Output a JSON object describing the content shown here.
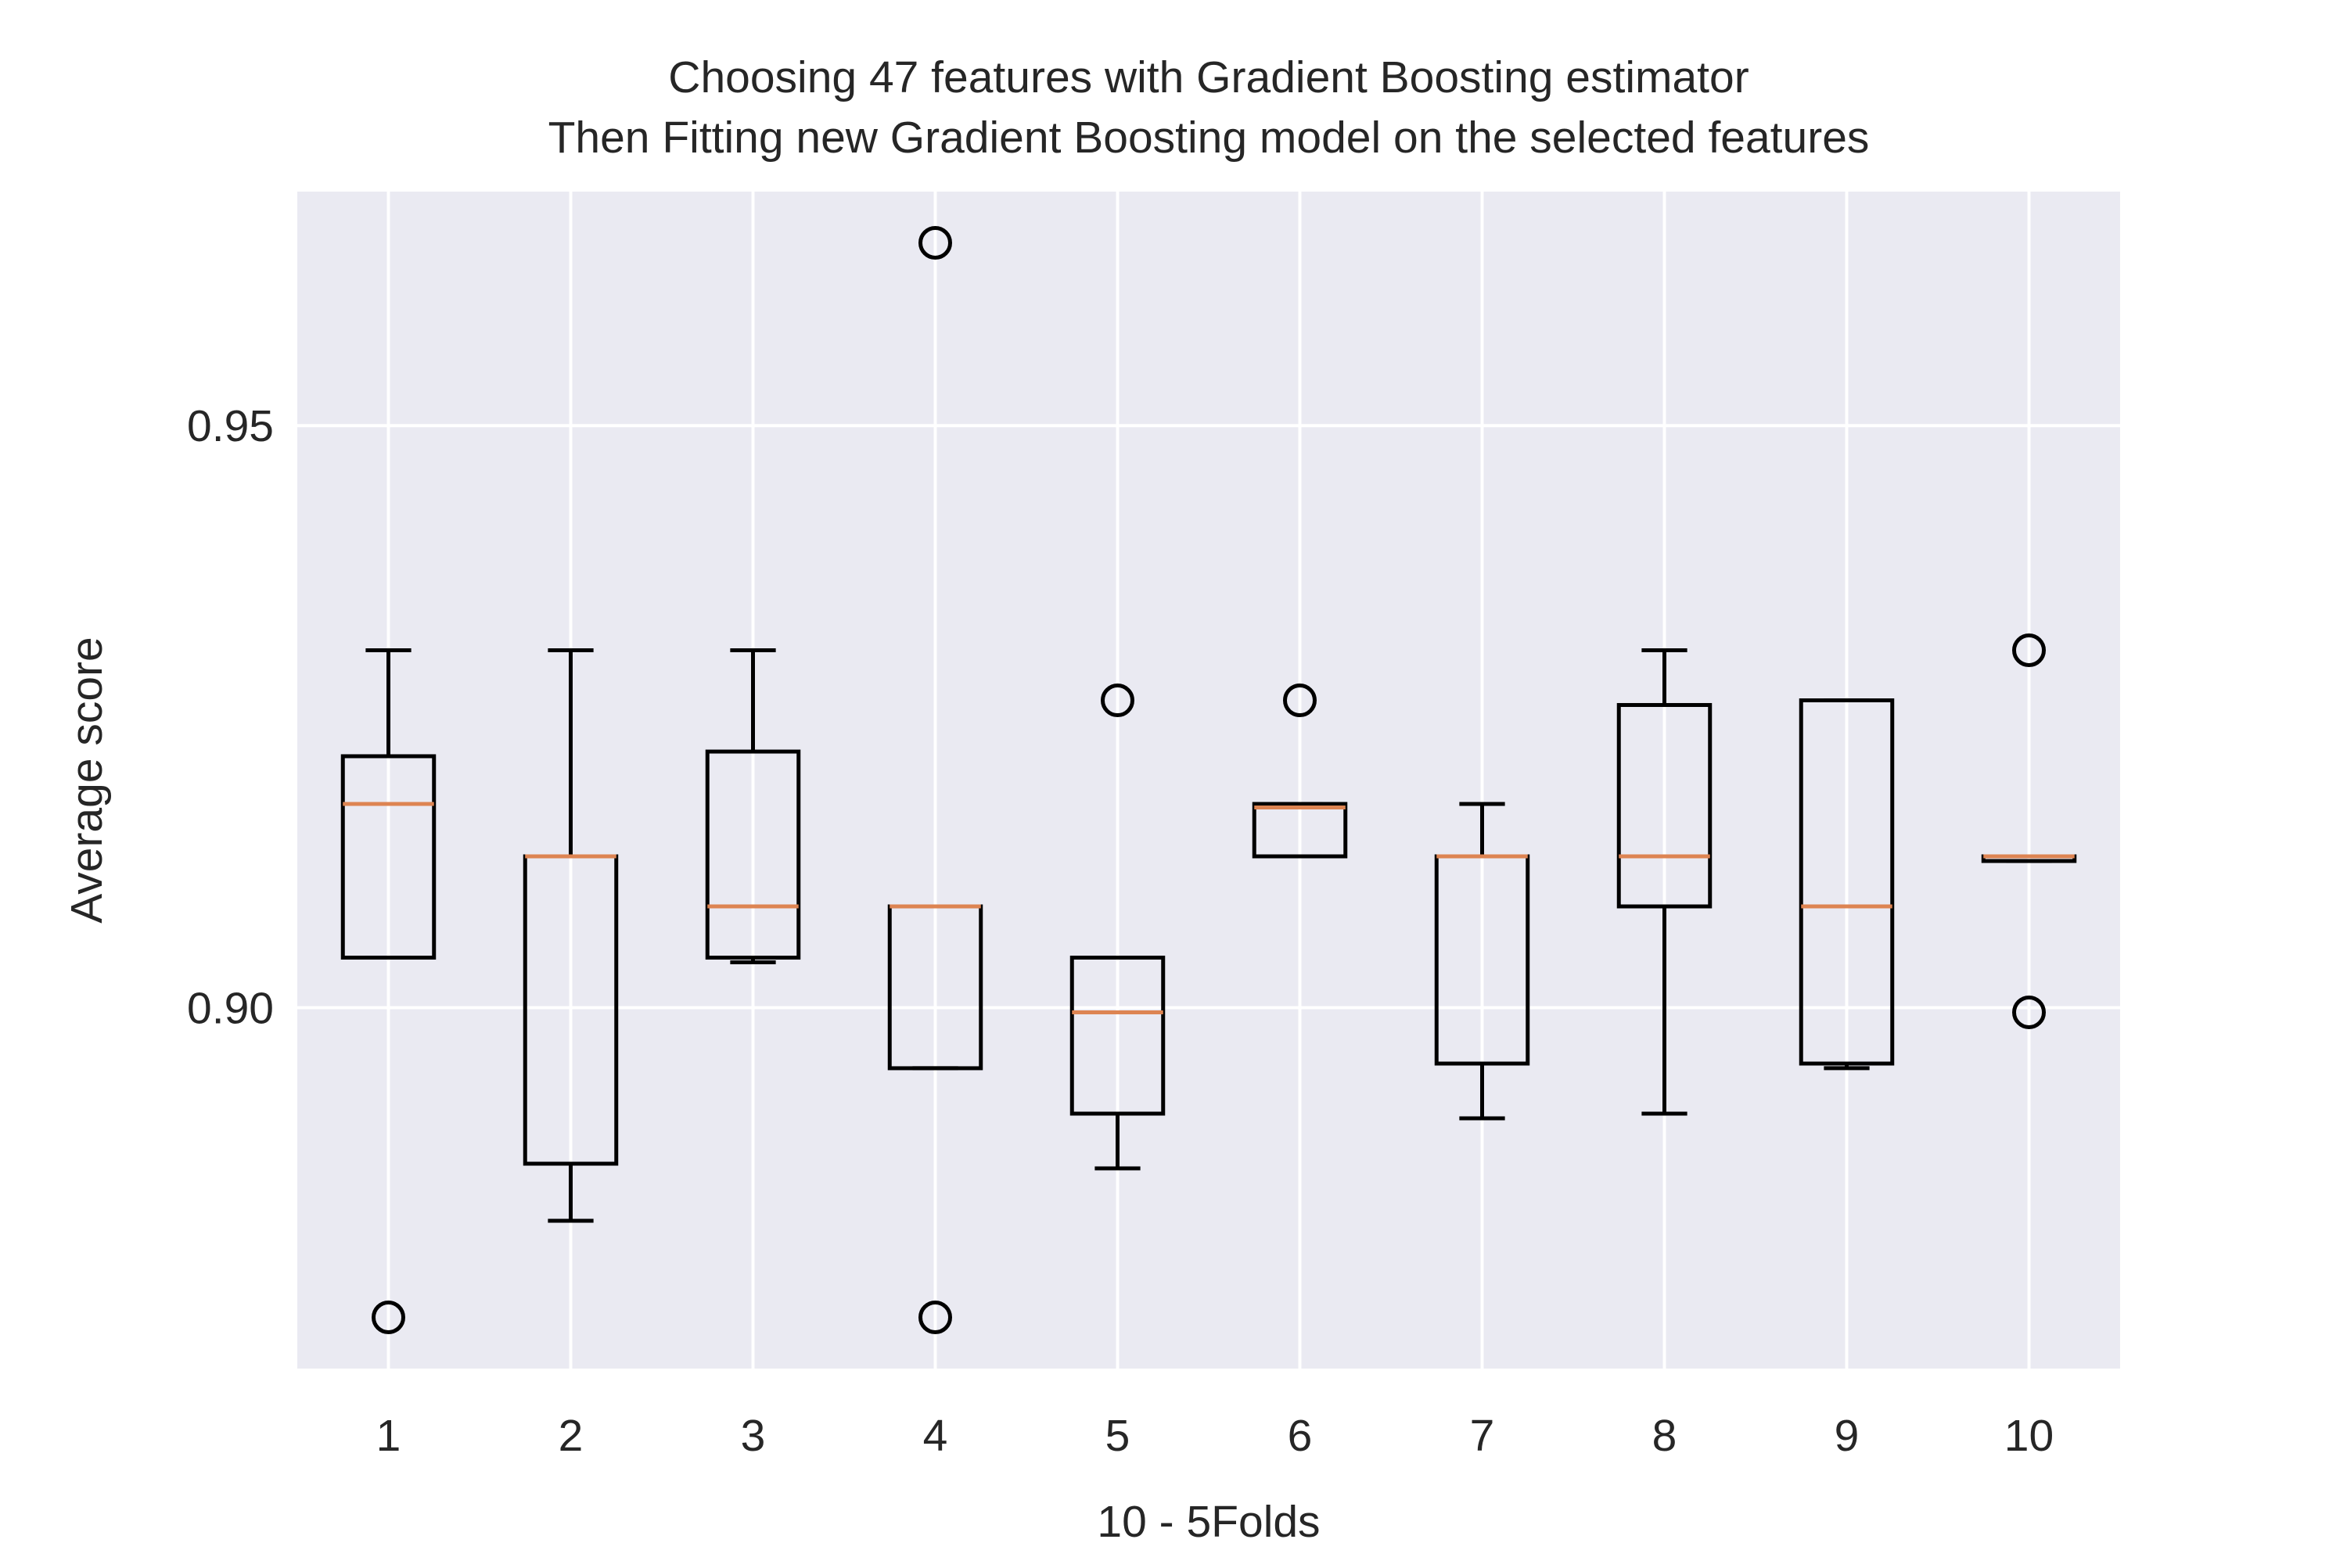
{
  "chart_data": {
    "type": "box",
    "title": "Choosing 47 features with Gradient Boosting estimator\nThen Fitting new Gradient Boosting model on the selected features",
    "title_lines": [
      "Choosing 47 features with Gradient Boosting estimator",
      "Then Fitting new Gradient Boosting model on the selected features"
    ],
    "xlabel": "10 - 5Folds",
    "ylabel": "Average score",
    "ylim": [
      0.869,
      0.9701
    ],
    "yticks": [
      0.9,
      0.95
    ],
    "ytick_labels": [
      "0.90",
      "0.95"
    ],
    "categories": [
      "1",
      "2",
      "3",
      "4",
      "5",
      "6",
      "7",
      "8",
      "9",
      "10"
    ],
    "boxes": [
      {
        "label": "1",
        "whislo": 0.9043,
        "q1": 0.9043,
        "med": 0.9175,
        "q3": 0.9216,
        "whishi": 0.9307,
        "fliers": [
          0.8734
        ]
      },
      {
        "label": "2",
        "whislo": 0.8817,
        "q1": 0.8866,
        "med": 0.913,
        "q3": 0.913,
        "whishi": 0.9307,
        "fliers": []
      },
      {
        "label": "3",
        "whislo": 0.9039,
        "q1": 0.9043,
        "med": 0.9087,
        "q3": 0.922,
        "whishi": 0.9307,
        "fliers": []
      },
      {
        "label": "4",
        "whislo": 0.8948,
        "q1": 0.8948,
        "med": 0.9087,
        "q3": 0.9087,
        "whishi": 0.9087,
        "fliers": [
          0.9657,
          0.8734
        ]
      },
      {
        "label": "5",
        "whislo": 0.8862,
        "q1": 0.8909,
        "med": 0.8996,
        "q3": 0.9043,
        "whishi": 0.9043,
        "fliers": [
          0.9264
        ]
      },
      {
        "label": "6",
        "whislo": 0.913,
        "q1": 0.913,
        "med": 0.9172,
        "q3": 0.9175,
        "whishi": 0.9175,
        "fliers": [
          0.9264
        ]
      },
      {
        "label": "7",
        "whislo": 0.8905,
        "q1": 0.8952,
        "med": 0.913,
        "q3": 0.913,
        "whishi": 0.9175,
        "fliers": []
      },
      {
        "label": "8",
        "whislo": 0.8909,
        "q1": 0.9087,
        "med": 0.913,
        "q3": 0.926,
        "whishi": 0.9307,
        "fliers": []
      },
      {
        "label": "9",
        "whislo": 0.8948,
        "q1": 0.8952,
        "med": 0.9087,
        "q3": 0.9264,
        "whishi": 0.9264,
        "fliers": []
      },
      {
        "label": "10",
        "whislo": 0.9126,
        "q1": 0.9126,
        "med": 0.913,
        "q3": 0.913,
        "whishi": 0.913,
        "fliers": [
          0.9307,
          0.8996
        ]
      }
    ],
    "grid": true,
    "style": "seaborn-darkgrid",
    "colors": {
      "background": "#eaeaf2",
      "grid": "#ffffff",
      "box": "#000000",
      "median": "#dd8452",
      "text": "#262626"
    }
  }
}
